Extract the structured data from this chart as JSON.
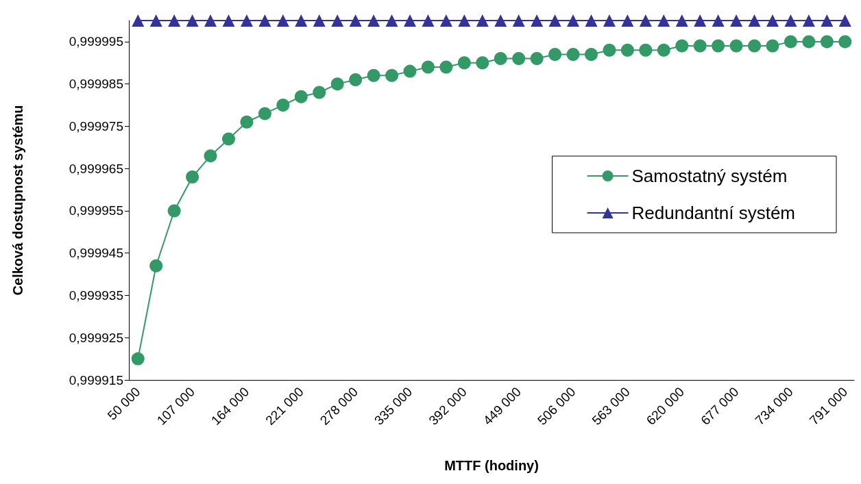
{
  "chart_data": {
    "type": "line",
    "xlabel": "MTTF (hodiny)",
    "ylabel": "Celková dostupnost systému",
    "categories": [
      "50 000",
      null,
      null,
      "107 000",
      null,
      null,
      "164 000",
      null,
      null,
      "221 000",
      null,
      null,
      "278 000",
      null,
      null,
      "335 000",
      null,
      null,
      "392 000",
      null,
      null,
      "449 000",
      null,
      null,
      "506 000",
      null,
      null,
      "563 000",
      null,
      null,
      "620 000",
      null,
      null,
      "677 000",
      null,
      null,
      "734 000",
      null,
      null,
      "791 000"
    ],
    "ylim": [
      0.999915,
      1.0
    ],
    "yticks": [
      {
        "value": 0.999915,
        "label": "0,999915"
      },
      {
        "value": 0.999925,
        "label": "0,999925"
      },
      {
        "value": 0.999935,
        "label": "0,999935"
      },
      {
        "value": 0.999945,
        "label": "0,999945"
      },
      {
        "value": 0.999955,
        "label": "0,999955"
      },
      {
        "value": 0.999965,
        "label": "0,999965"
      },
      {
        "value": 0.999975,
        "label": "0,999975"
      },
      {
        "value": 0.999985,
        "label": "0,999985"
      },
      {
        "value": 0.999995,
        "label": "0,999995"
      }
    ],
    "grid": false,
    "legend": "right",
    "series": [
      {
        "name": "Samostatný systém",
        "color": "#339966",
        "marker": "circle",
        "values": [
          0.99992,
          0.999942,
          0.999955,
          0.999963,
          0.999968,
          0.999972,
          0.999976,
          0.999978,
          0.99998,
          0.999982,
          0.999983,
          0.999985,
          0.999986,
          0.999987,
          0.999987,
          0.999988,
          0.999989,
          0.999989,
          0.99999,
          0.99999,
          0.999991,
          0.999991,
          0.999991,
          0.999992,
          0.999992,
          0.999992,
          0.999993,
          0.999993,
          0.999993,
          0.999993,
          0.999994,
          0.999994,
          0.999994,
          0.999994,
          0.999994,
          0.999994,
          0.999995,
          0.999995,
          0.999995,
          0.999995
        ]
      },
      {
        "name": "Redundantní systém",
        "color": "#333399",
        "marker": "triangle",
        "values": [
          1,
          1,
          1,
          1,
          1,
          1,
          1,
          1,
          1,
          1,
          1,
          1,
          1,
          1,
          1,
          1,
          1,
          1,
          1,
          1,
          1,
          1,
          1,
          1,
          1,
          1,
          1,
          1,
          1,
          1,
          1,
          1,
          1,
          1,
          1,
          1,
          1,
          1,
          1,
          1
        ]
      }
    ]
  }
}
